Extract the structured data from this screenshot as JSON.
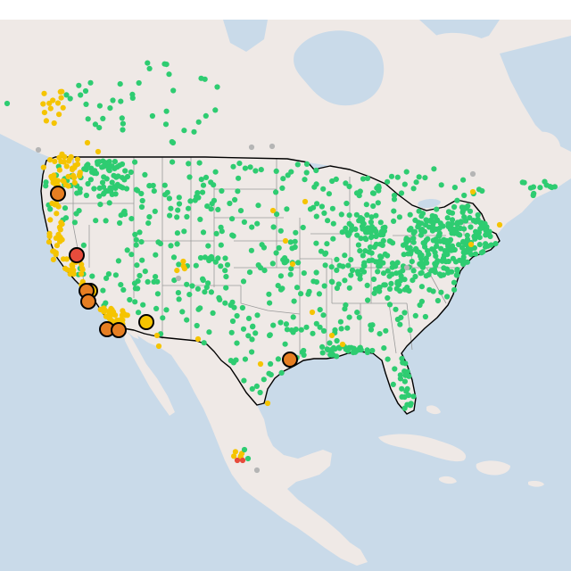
{
  "map": {
    "colors": {
      "water": "#c9dae9",
      "land": "#efe9e6",
      "country_border": "#000000",
      "state_border": "#9a9a9a",
      "good": "#2ecc71",
      "moderate": "#f5c400",
      "usg": "#e67e22",
      "unhealthy": "#e74c3c",
      "no_data": "#b5b5b5"
    },
    "sensor_categories": [
      "good",
      "moderate",
      "usg",
      "unhealthy",
      "no_data"
    ],
    "highlighted_sites": [
      {
        "category": "usg"
      },
      {
        "category": "unhealthy"
      },
      {
        "category": "moderate"
      },
      {
        "category": "usg"
      },
      {
        "category": "usg"
      },
      {
        "category": "usg"
      },
      {
        "category": "usg"
      },
      {
        "category": "moderate"
      },
      {
        "category": "usg"
      }
    ]
  }
}
